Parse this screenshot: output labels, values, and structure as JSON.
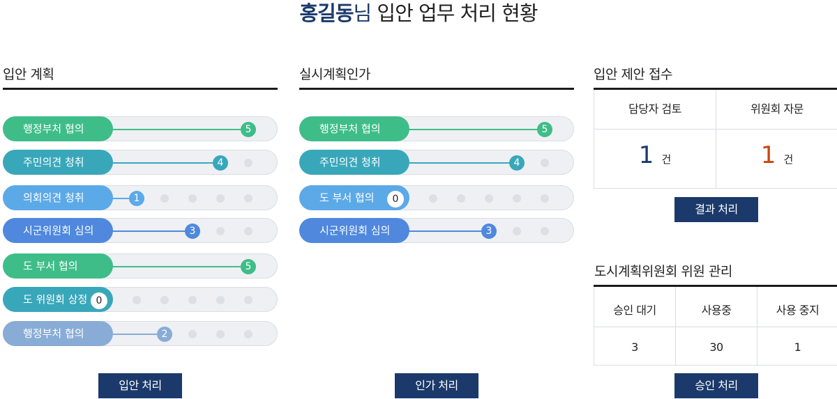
{
  "header": {
    "name": "홍길동",
    "suffix": "님",
    "rest": " 입안 업무 처리 현황"
  },
  "colors": {
    "green": "#3fbd89",
    "teal": "#39a7ba",
    "sky": "#5ca9e8",
    "blue": "#4f88dd",
    "grayblue": "#88acd6",
    "navy": "#1b3a6b",
    "orange": "#c8470f"
  },
  "plan": {
    "title": "입안 계획",
    "items": [
      {
        "label": "행정부처 협의",
        "count": "5",
        "color": "green"
      },
      {
        "label": "주민의견 청취",
        "count": "4",
        "color": "teal"
      },
      {
        "label": "의회의견 청취",
        "count": "1",
        "color": "sky"
      },
      {
        "label": "시군위원회 심의",
        "count": "3",
        "color": "blue"
      },
      {
        "label": "도 부서 협의",
        "count": "5",
        "color": "green"
      },
      {
        "label": "도 위원회 상정",
        "count": "0",
        "color": "teal"
      },
      {
        "label": "행정부처 협의",
        "count": "2",
        "color": "grayblue"
      }
    ],
    "button": "입안 처리"
  },
  "approval": {
    "title": "실시계획인가",
    "items": [
      {
        "label": "행정부처 협의",
        "count": "5",
        "color": "green"
      },
      {
        "label": "주민의견 청취",
        "count": "4",
        "color": "teal"
      },
      {
        "label": "도 부서 협의",
        "count": "0",
        "color": "sky"
      },
      {
        "label": "시군위원회 심의",
        "count": "3",
        "color": "blue"
      }
    ],
    "button": "인가 처리"
  },
  "proposal": {
    "title": "입안 제안 접수",
    "headers": [
      "담당자 검토",
      "위원회 자문"
    ],
    "values": [
      "1",
      "1"
    ],
    "unit": "건",
    "button": "결과 처리"
  },
  "committee": {
    "title": "도시계획위원회 위원 관리",
    "headers": [
      "승인 대기",
      "사용중",
      "사용 중지"
    ],
    "values": [
      "3",
      "30",
      "1"
    ],
    "button": "승인 처리"
  }
}
